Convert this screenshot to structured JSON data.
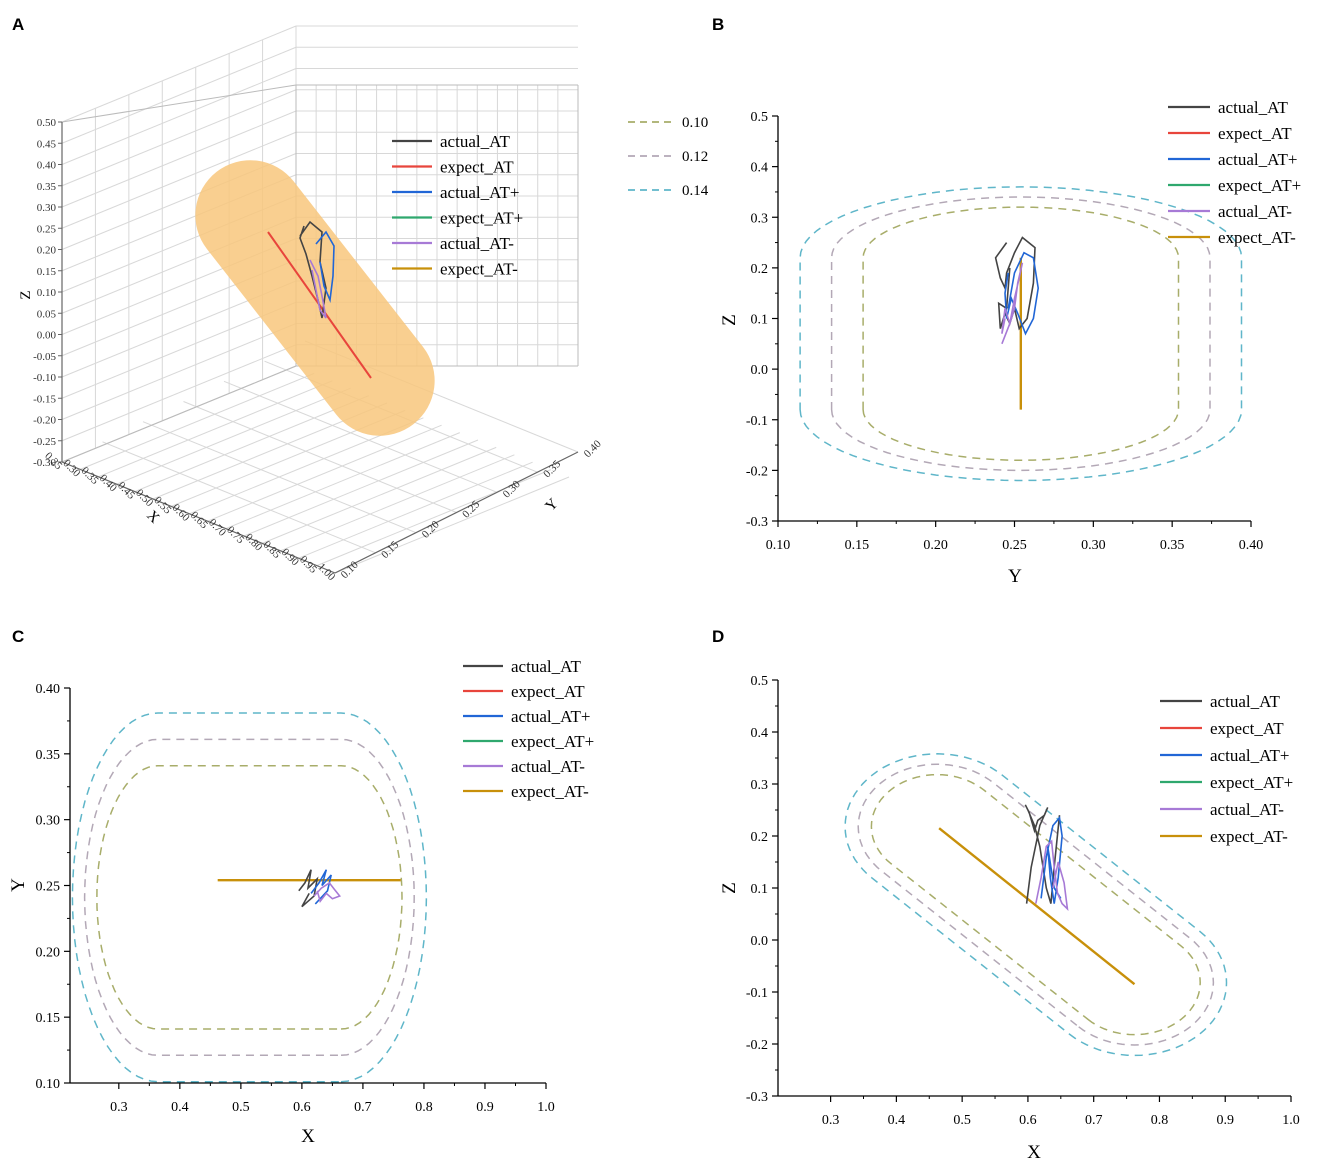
{
  "series_colors": {
    "actual_AT": "#444444",
    "expect_AT": "#e8453c",
    "actual_AT+": "#2166d6",
    "expect_AT+": "#2fa86e",
    "actual_AT-": "#a77ad6",
    "expect_AT-": "#c8900a"
  },
  "boundary_colors": {
    "0.10": "#a8ad6a",
    "0.12": "#b3a8b6",
    "0.14": "#5fb6c9"
  },
  "cylinder_color": "#f8c77c",
  "chart_data": [
    {
      "panel": "A",
      "type": "line3d",
      "xlabel": "X",
      "ylabel": "Y",
      "zlabel": "Z",
      "x_ticks": [
        "0.25",
        "0.30",
        "0.35",
        "0.40",
        "0.45",
        "0.50",
        "0.55",
        "0.60",
        "0.65",
        "0.70",
        "0.75",
        "0.80",
        "0.85",
        "0.90",
        "0.95",
        "1.00"
      ],
      "y_ticks": [
        "0.10",
        "0.15",
        "0.20",
        "0.25",
        "0.30",
        "0.35",
        "0.40"
      ],
      "z_ticks": [
        "0.50",
        "0.45",
        "0.40",
        "0.35",
        "0.30",
        "0.25",
        "0.20",
        "0.15",
        "0.10",
        "0.05",
        "0.00",
        "-0.05",
        "-0.10",
        "-0.15",
        "-0.20",
        "-0.25",
        "-0.30"
      ],
      "legend": [
        "actual_AT",
        "expect_AT",
        "actual_AT+",
        "expect_AT+",
        "actual_AT-",
        "expect_AT-"
      ],
      "boundary_legend": [
        "0.10",
        "0.12",
        "0.14"
      ]
    },
    {
      "panel": "B",
      "type": "line",
      "xlabel": "Y",
      "ylabel": "Z",
      "xlim": [
        0.1,
        0.4
      ],
      "ylim": [
        -0.3,
        0.5
      ],
      "x_ticks": [
        "0.10",
        "0.15",
        "0.20",
        "0.25",
        "0.30",
        "0.35",
        "0.40"
      ],
      "y_ticks": [
        "-0.3",
        "-0.2",
        "-0.1",
        "0.0",
        "0.1",
        "0.2",
        "0.3",
        "0.4",
        "0.5"
      ],
      "legend": [
        "actual_AT",
        "expect_AT",
        "actual_AT+",
        "expect_AT+",
        "actual_AT-",
        "expect_AT-"
      ],
      "expected_segment": {
        "x": [
          0.254,
          0.254
        ],
        "y": [
          0.22,
          -0.08
        ]
      },
      "boundaries": [
        {
          "label": "0.10",
          "x": [
            0.254,
            0.254
          ],
          "y": [
            0.22,
            -0.08
          ],
          "r": 0.1
        },
        {
          "label": "0.12",
          "x": [
            0.254,
            0.254
          ],
          "y": [
            0.22,
            -0.08
          ],
          "r": 0.12
        },
        {
          "label": "0.14",
          "x": [
            0.254,
            0.254
          ],
          "y": [
            0.22,
            -0.08
          ],
          "r": 0.14
        }
      ],
      "actual": [
        {
          "name": "actual_AT",
          "x": [
            0.245,
            0.238,
            0.241,
            0.244,
            0.245,
            0.25,
            0.255,
            0.263,
            0.262,
            0.258,
            0.253,
            0.25,
            0.247,
            0.244,
            0.241,
            0.24,
            0.245,
            0.247
          ],
          "y": [
            0.25,
            0.22,
            0.18,
            0.16,
            0.19,
            0.23,
            0.26,
            0.24,
            0.17,
            0.1,
            0.08,
            0.12,
            0.09,
            0.11,
            0.08,
            0.13,
            0.12,
            0.2
          ]
        },
        {
          "name": "actual_AT+",
          "x": [
            0.246,
            0.25,
            0.256,
            0.262,
            0.265,
            0.262,
            0.257,
            0.252,
            0.248,
            0.245,
            0.244,
            0.246
          ],
          "y": [
            0.12,
            0.19,
            0.23,
            0.22,
            0.16,
            0.1,
            0.07,
            0.11,
            0.14,
            0.1,
            0.15,
            0.19
          ]
        },
        {
          "name": "actual_AT-",
          "x": [
            0.242,
            0.247,
            0.25,
            0.253,
            0.255,
            0.252,
            0.25,
            0.247,
            0.244,
            0.242,
            0.244
          ],
          "y": [
            0.05,
            0.09,
            0.14,
            0.18,
            0.21,
            0.17,
            0.12,
            0.09,
            0.12,
            0.07,
            0.1
          ]
        }
      ]
    },
    {
      "panel": "C",
      "type": "line",
      "xlabel": "X",
      "ylabel": "Y",
      "xlim": [
        0.22,
        1.0
      ],
      "ylim": [
        0.1,
        0.4
      ],
      "x_ticks": [
        "0.3",
        "0.4",
        "0.5",
        "0.6",
        "0.7",
        "0.8",
        "0.9",
        "1.0"
      ],
      "y_ticks": [
        "0.10",
        "0.15",
        "0.20",
        "0.25",
        "0.30",
        "0.35",
        "0.40"
      ],
      "legend": [
        "actual_AT",
        "expect_AT",
        "actual_AT+",
        "expect_AT+",
        "actual_AT-",
        "expect_AT-"
      ],
      "expected_segment": {
        "x": [
          0.462,
          0.762
        ],
        "y": [
          0.254,
          0.254
        ]
      },
      "boundaries": [
        {
          "label": "0.10",
          "x": [
            0.364,
            0.664
          ],
          "y": [
            0.241,
            0.241
          ],
          "r": 0.1
        },
        {
          "label": "0.12",
          "x": [
            0.364,
            0.664
          ],
          "y": [
            0.241,
            0.241
          ],
          "r": 0.12
        },
        {
          "label": "0.14",
          "x": [
            0.364,
            0.664
          ],
          "y": [
            0.241,
            0.241
          ],
          "r": 0.14
        }
      ],
      "actual": [
        {
          "name": "actual_AT",
          "x": [
            0.595,
            0.605,
            0.615,
            0.61,
            0.625,
            0.62,
            0.61,
            0.6,
            0.612
          ],
          "y": [
            0.246,
            0.252,
            0.262,
            0.248,
            0.255,
            0.242,
            0.238,
            0.234,
            0.244
          ]
        },
        {
          "name": "actual_AT+",
          "x": [
            0.615,
            0.628,
            0.64,
            0.633,
            0.648,
            0.642,
            0.63,
            0.622
          ],
          "y": [
            0.244,
            0.252,
            0.262,
            0.25,
            0.258,
            0.246,
            0.24,
            0.236
          ]
        },
        {
          "name": "actual_AT-",
          "x": [
            0.62,
            0.632,
            0.645,
            0.655,
            0.662,
            0.65,
            0.64,
            0.63,
            0.625
          ],
          "y": [
            0.242,
            0.248,
            0.252,
            0.246,
            0.242,
            0.24,
            0.244,
            0.238,
            0.246
          ]
        }
      ]
    },
    {
      "panel": "D",
      "type": "line",
      "xlabel": "X",
      "ylabel": "Z",
      "xlim": [
        0.22,
        1.0
      ],
      "ylim": [
        -0.3,
        0.5
      ],
      "x_ticks": [
        "0.3",
        "0.4",
        "0.5",
        "0.6",
        "0.7",
        "0.8",
        "0.9",
        "1.0"
      ],
      "y_ticks": [
        "-0.3",
        "-0.2",
        "-0.1",
        "0.0",
        "0.1",
        "0.2",
        "0.3",
        "0.4",
        "0.5"
      ],
      "legend": [
        "actual_AT",
        "expect_AT",
        "actual_AT+",
        "expect_AT+",
        "actual_AT-",
        "expect_AT-"
      ],
      "expected_segment": {
        "x": [
          0.465,
          0.762
        ],
        "y": [
          0.215,
          -0.085
        ]
      },
      "boundaries": [
        {
          "label": "0.10",
          "x": [
            0.462,
            0.762
          ],
          "y": [
            0.218,
            -0.082
          ],
          "r": 0.1
        },
        {
          "label": "0.12",
          "x": [
            0.462,
            0.762
          ],
          "y": [
            0.218,
            -0.082
          ],
          "r": 0.12
        },
        {
          "label": "0.14",
          "x": [
            0.462,
            0.762
          ],
          "y": [
            0.218,
            -0.082
          ],
          "r": 0.14
        }
      ],
      "actual": [
        {
          "name": "actual_AT",
          "x": [
            0.598,
            0.605,
            0.618,
            0.63,
            0.625,
            0.615,
            0.61,
            0.602,
            0.596,
            0.6,
            0.61,
            0.618,
            0.628,
            0.635,
            0.64,
            0.648
          ],
          "y": [
            0.07,
            0.14,
            0.22,
            0.255,
            0.24,
            0.23,
            0.21,
            0.245,
            0.26,
            0.25,
            0.22,
            0.18,
            0.1,
            0.07,
            0.14,
            0.24
          ]
        },
        {
          "name": "actual_AT+",
          "x": [
            0.62,
            0.628,
            0.638,
            0.648,
            0.652,
            0.646,
            0.64,
            0.634,
            0.63,
            0.64,
            0.65
          ],
          "y": [
            0.08,
            0.16,
            0.22,
            0.235,
            0.2,
            0.12,
            0.07,
            0.12,
            0.18,
            0.1,
            0.08
          ]
        },
        {
          "name": "actual_AT-",
          "x": [
            0.612,
            0.62,
            0.628,
            0.636,
            0.64,
            0.645,
            0.652,
            0.66,
            0.655,
            0.646,
            0.638
          ],
          "y": [
            0.07,
            0.12,
            0.18,
            0.19,
            0.14,
            0.09,
            0.07,
            0.06,
            0.11,
            0.15,
            0.1
          ]
        }
      ]
    }
  ]
}
